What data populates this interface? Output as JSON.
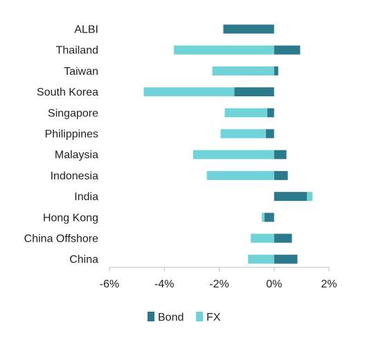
{
  "chart_data": {
    "type": "bar",
    "orientation": "horizontal",
    "stacked": true,
    "categories": [
      "ALBI",
      "Thailand",
      "Taiwan",
      "South Korea",
      "Singapore",
      "Philippines",
      "Malaysia",
      "Indonesia",
      "India",
      "Hong Kong",
      "China Offshore",
      "China"
    ],
    "series": [
      {
        "name": "Bond",
        "color": "#2b7a8c",
        "values": [
          -1.85,
          0.95,
          0.15,
          -1.45,
          -0.25,
          -0.3,
          0.45,
          0.5,
          1.2,
          -0.35,
          0.65,
          0.85
        ]
      },
      {
        "name": "FX",
        "color": "#6fd3d8",
        "values": [
          0,
          -3.65,
          -2.25,
          -3.3,
          -1.55,
          -1.65,
          -2.95,
          -2.45,
          0.2,
          -0.1,
          -0.85,
          -0.95
        ]
      }
    ],
    "xaxis": {
      "ticks": [
        -6,
        -4,
        -2,
        0,
        2
      ],
      "tick_labels": [
        "-6%",
        "-4%",
        "-2%",
        "0%",
        "2%"
      ],
      "range": [
        -6,
        2
      ]
    },
    "xlabel": "",
    "ylabel": "",
    "grid": false,
    "legend_position": "bottom"
  }
}
